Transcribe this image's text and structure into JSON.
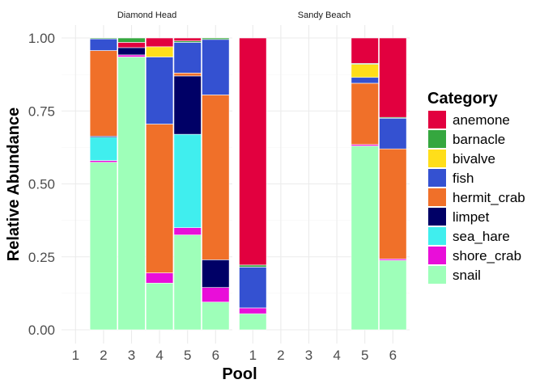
{
  "chart_data": {
    "type": "bar",
    "stacked": true,
    "xlabel": "Pool",
    "ylabel": "Relative Abundance",
    "ylim": [
      0,
      1
    ],
    "yticks": [
      "0.00",
      "0.25",
      "0.50",
      "0.75",
      "1.00"
    ],
    "grid": true,
    "legend": {
      "title": "Category",
      "position": "right",
      "entries": [
        {
          "name": "anemone",
          "color": "#E2003F"
        },
        {
          "name": "barnacle",
          "color": "#35A73F"
        },
        {
          "name": "bivalve",
          "color": "#FFDE1A"
        },
        {
          "name": "fish",
          "color": "#3451D1"
        },
        {
          "name": "hermit_crab",
          "color": "#F07029"
        },
        {
          "name": "limpet",
          "color": "#000066"
        },
        {
          "name": "sea_hare",
          "color": "#40EEEE"
        },
        {
          "name": "shore_crab",
          "color": "#E90ED9"
        },
        {
          "name": "snail",
          "color": "#9EFFB9"
        }
      ]
    },
    "panels": [
      {
        "title": "Diamond Head",
        "categories": [
          "1",
          "2",
          "3",
          "4",
          "5",
          "6"
        ],
        "stacks": [
          [],
          [
            {
              "category": "snail",
              "value": 0.574
            },
            {
              "category": "shore_crab",
              "value": 0.006
            },
            {
              "category": "sea_hare",
              "value": 0.08
            },
            {
              "category": "limpet",
              "value": 0.004
            },
            {
              "category": "hermit_crab",
              "value": 0.293
            },
            {
              "category": "fish",
              "value": 0.04
            },
            {
              "category": "bivalve",
              "value": 0.0
            },
            {
              "category": "barnacle",
              "value": 0.003
            },
            {
              "category": "anemone",
              "value": 0.0
            }
          ],
          [
            {
              "category": "snail",
              "value": 0.935
            },
            {
              "category": "shore_crab",
              "value": 0.007
            },
            {
              "category": "limpet",
              "value": 0.025
            },
            {
              "category": "anemone",
              "value": 0.018
            },
            {
              "category": "barnacle",
              "value": 0.015
            }
          ],
          [
            {
              "category": "snail",
              "value": 0.16
            },
            {
              "category": "shore_crab",
              "value": 0.035
            },
            {
              "category": "hermit_crab",
              "value": 0.51
            },
            {
              "category": "fish",
              "value": 0.23
            },
            {
              "category": "bivalve",
              "value": 0.035
            },
            {
              "category": "anemone",
              "value": 0.03
            }
          ],
          [
            {
              "category": "snail",
              "value": 0.325
            },
            {
              "category": "shore_crab",
              "value": 0.025
            },
            {
              "category": "sea_hare",
              "value": 0.32
            },
            {
              "category": "limpet",
              "value": 0.2
            },
            {
              "category": "hermit_crab",
              "value": 0.01
            },
            {
              "category": "fish",
              "value": 0.105
            },
            {
              "category": "barnacle",
              "value": 0.005
            },
            {
              "category": "anemone",
              "value": 0.01
            }
          ],
          [
            {
              "category": "snail",
              "value": 0.095
            },
            {
              "category": "shore_crab",
              "value": 0.05
            },
            {
              "category": "limpet",
              "value": 0.095
            },
            {
              "category": "hermit_crab",
              "value": 0.565
            },
            {
              "category": "fish",
              "value": 0.19
            },
            {
              "category": "barnacle",
              "value": 0.005
            }
          ]
        ]
      },
      {
        "title": "Sandy Beach",
        "categories": [
          "1",
          "2",
          "3",
          "4",
          "5",
          "6"
        ],
        "stacks": [
          [
            {
              "category": "snail",
              "value": 0.055
            },
            {
              "category": "shore_crab",
              "value": 0.02
            },
            {
              "category": "fish",
              "value": 0.14
            },
            {
              "category": "barnacle",
              "value": 0.007
            },
            {
              "category": "anemone",
              "value": 0.778
            }
          ],
          [],
          [],
          [],
          [
            {
              "category": "snail",
              "value": 0.63
            },
            {
              "category": "shore_crab",
              "value": 0.005
            },
            {
              "category": "hermit_crab",
              "value": 0.21
            },
            {
              "category": "fish",
              "value": 0.02
            },
            {
              "category": "bivalve",
              "value": 0.045
            },
            {
              "category": "barnacle",
              "value": 0.003
            },
            {
              "category": "anemone",
              "value": 0.087
            }
          ],
          [
            {
              "category": "snail",
              "value": 0.238
            },
            {
              "category": "shore_crab",
              "value": 0.005
            },
            {
              "category": "hermit_crab",
              "value": 0.377
            },
            {
              "category": "fish",
              "value": 0.105
            },
            {
              "category": "barnacle",
              "value": 0.003
            },
            {
              "category": "anemone",
              "value": 0.272
            }
          ]
        ]
      }
    ]
  }
}
